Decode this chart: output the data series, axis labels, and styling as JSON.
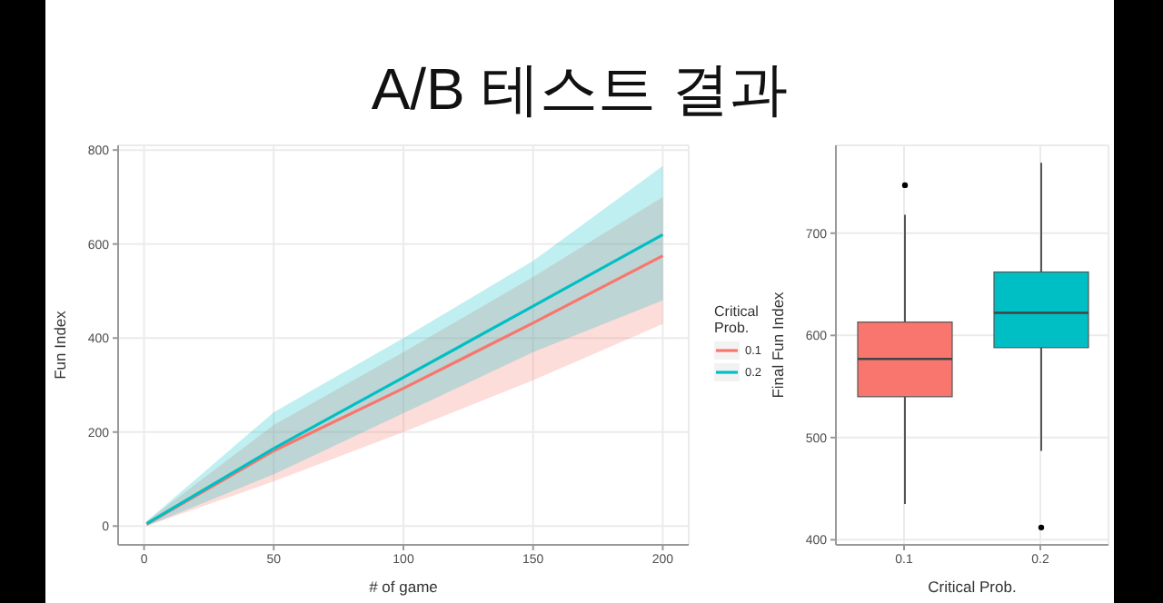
{
  "chart_data": [
    {
      "type": "line",
      "title": "A/B 테스트 결과",
      "xlabel": "# of game",
      "ylabel": "Fun Index",
      "legend_title": "Critical Prob.",
      "legend": "right",
      "grid": true,
      "xlim": [
        -10,
        210
      ],
      "xticks": [
        0,
        50,
        100,
        150,
        200
      ],
      "ylim": [
        -40,
        810
      ],
      "yticks": [
        0,
        200,
        400,
        600,
        800
      ],
      "series": [
        {
          "name": "0.1",
          "color": "#f8766d",
          "x": [
            1,
            50,
            100,
            150,
            200
          ],
          "values": [
            4,
            160,
            293,
            432,
            575
          ],
          "lower": [
            0,
            95,
            200,
            310,
            430
          ],
          "upper": [
            10,
            215,
            370,
            530,
            700
          ]
        },
        {
          "name": "0.2",
          "color": "#00bfc4",
          "x": [
            1,
            50,
            100,
            150,
            200
          ],
          "values": [
            5,
            165,
            316,
            468,
            620
          ],
          "lower": [
            0,
            110,
            240,
            370,
            480
          ],
          "upper": [
            10,
            242,
            400,
            564,
            766
          ]
        }
      ]
    },
    {
      "type": "box",
      "xlabel": "Critical Prob.",
      "ylabel": "Final Fun Index",
      "grid": true,
      "categories": [
        "0.1",
        "0.2"
      ],
      "colors": [
        "#f8766d",
        "#00bfc4"
      ],
      "ylim": [
        395,
        786
      ],
      "yticks": [
        400,
        500,
        600,
        700
      ],
      "boxes": [
        {
          "low": 435,
          "q1": 540,
          "median": 577,
          "q3": 613,
          "high": 718,
          "outliers": [
            747
          ]
        },
        {
          "low": 487,
          "q1": 588,
          "median": 622,
          "q3": 662,
          "high": 769,
          "outliers": [
            412
          ]
        }
      ]
    }
  ]
}
